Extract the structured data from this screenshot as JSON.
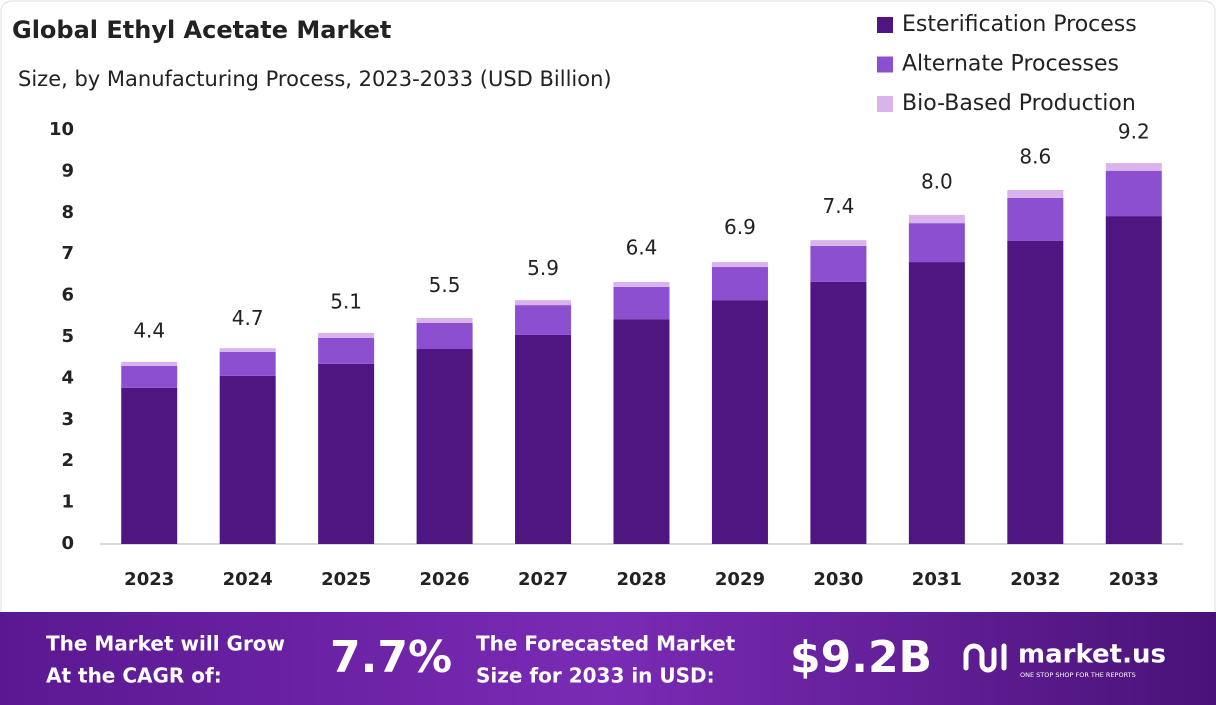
{
  "chart_data": {
    "type": "stacked_bar",
    "title": "Global Ethyl Acetate Market",
    "subtitle": "Size, by Manufacturing Process, 2023-2033 (USD Billion)",
    "categories": [
      "2023",
      "2024",
      "2025",
      "2026",
      "2027",
      "2028",
      "2029",
      "2030",
      "2031",
      "2032",
      "2033"
    ],
    "series": [
      {
        "name": "Esterification Process",
        "color": "#4f1580",
        "values": [
          3.77,
          4.06,
          4.35,
          4.71,
          5.05,
          5.43,
          5.89,
          6.33,
          6.81,
          7.32,
          7.92
        ]
      },
      {
        "name": "Alternate Processes",
        "color": "#8c4fd0",
        "values": [
          0.53,
          0.58,
          0.63,
          0.63,
          0.72,
          0.78,
          0.8,
          0.87,
          0.94,
          1.04,
          1.09
        ]
      },
      {
        "name": "Bio-Based Production",
        "color": "#d9b3ec",
        "values": [
          0.1,
          0.09,
          0.12,
          0.12,
          0.12,
          0.12,
          0.12,
          0.14,
          0.2,
          0.19,
          0.19
        ]
      }
    ],
    "totals": {
      "values": [
        4.4,
        4.7,
        5.1,
        5.5,
        5.9,
        6.4,
        6.9,
        7.4,
        8,
        8.6,
        9.2
      ],
      "value_labels": [
        "4.4",
        "4.7",
        "5.1",
        "5.5",
        "5.9",
        "6.4",
        "6.9",
        "7.4",
        "8.0",
        "8.6",
        "9.2"
      ]
    },
    "ylim": [
      0,
      10
    ],
    "yticks": [
      0,
      1,
      2,
      3,
      4,
      5,
      6,
      7,
      8,
      9,
      10
    ],
    "grid": false,
    "legend": "top-right"
  },
  "footer": {
    "cagr_text": [
      "The Market will Grow",
      "At the CAGR of:"
    ],
    "cagr": "7.7%",
    "size_text": [
      "The Forecasted Market",
      "Size for 2033 in USD:"
    ],
    "size": "$9.2B",
    "brand": "market.us",
    "tagline": "ONE STOP SHOP FOR THE REPORTS"
  }
}
